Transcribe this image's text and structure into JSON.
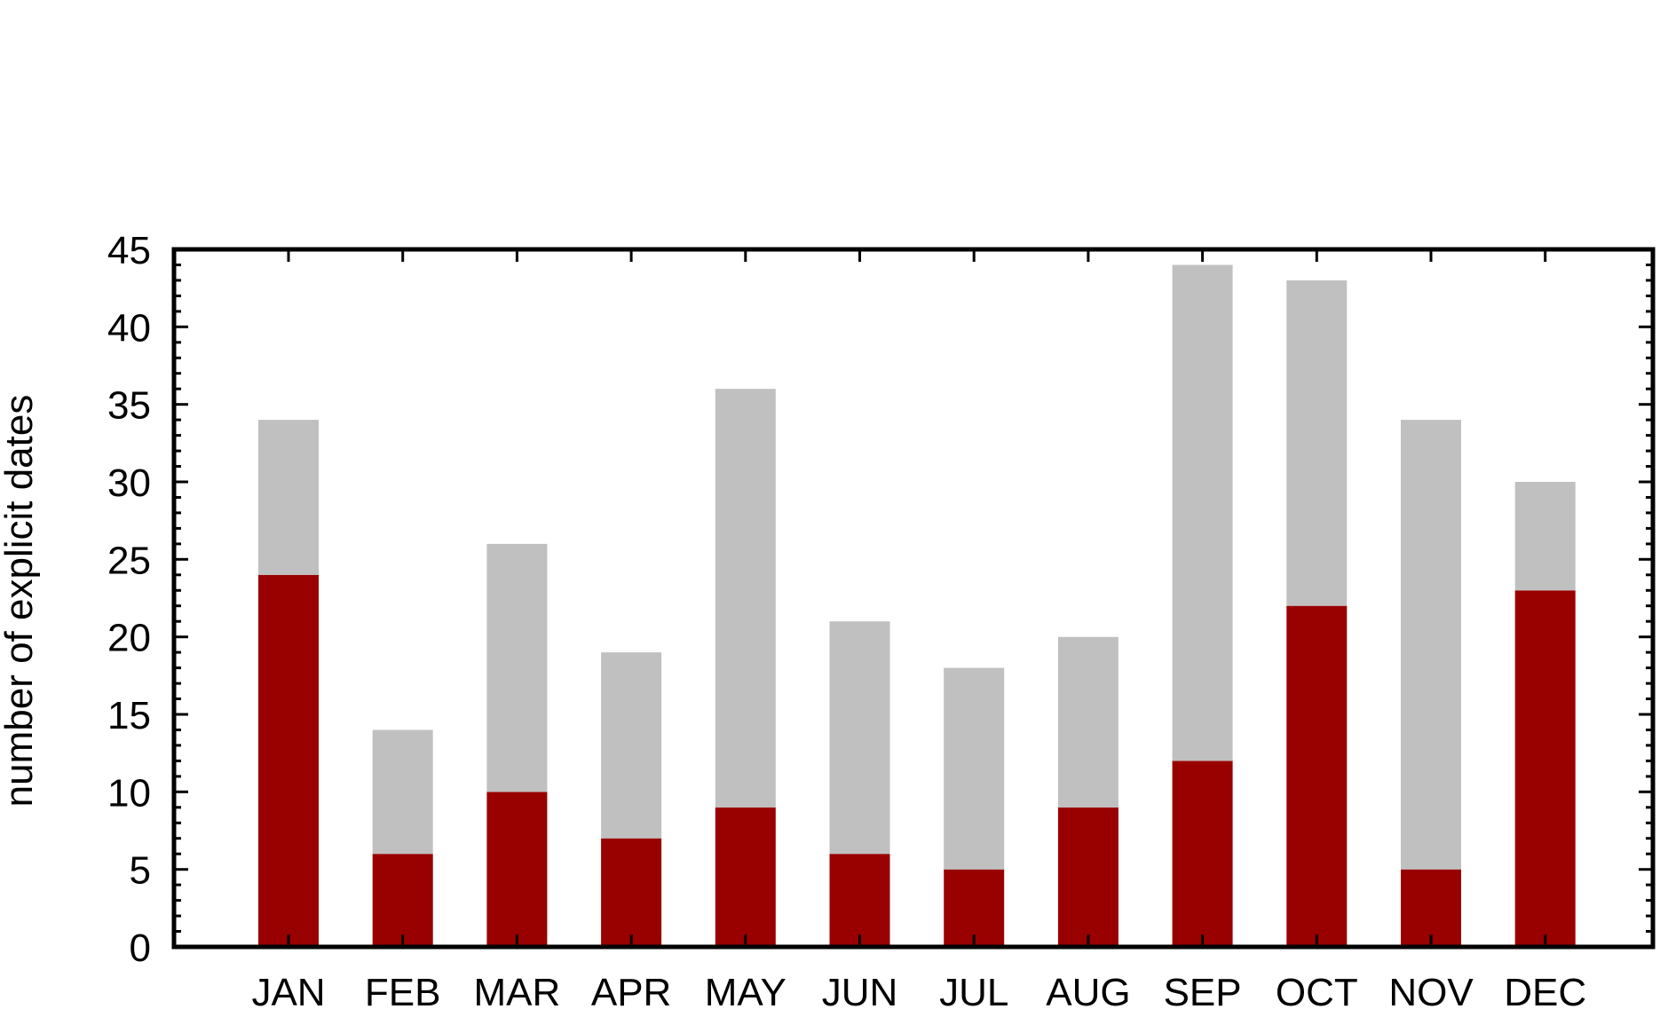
{
  "chart_data": {
    "type": "bar",
    "stacked": true,
    "categories": [
      "JAN",
      "FEB",
      "MAR",
      "APR",
      "MAY",
      "JUN",
      "JUL",
      "AUG",
      "SEP",
      "OCT",
      "NOV",
      "DEC"
    ],
    "series": [
      {
        "values": [
          24,
          6,
          10,
          7,
          9,
          6,
          5,
          9,
          12,
          22,
          5,
          23
        ],
        "color": "#990000"
      },
      {
        "values": [
          10,
          8,
          16,
          12,
          27,
          15,
          13,
          11,
          32,
          21,
          29,
          7
        ],
        "color": "#c0c0c0"
      }
    ],
    "totals": [
      34,
      14,
      26,
      19,
      36,
      21,
      18,
      20,
      44,
      43,
      34,
      30
    ],
    "ylabel": "number of explicit dates",
    "xlabel": "",
    "ylim": [
      0,
      45
    ],
    "yticks": [
      0,
      5,
      10,
      15,
      20,
      25,
      30,
      35,
      40,
      45
    ],
    "minor_ticks_per_major": 5,
    "grid": false,
    "legend": "none"
  }
}
